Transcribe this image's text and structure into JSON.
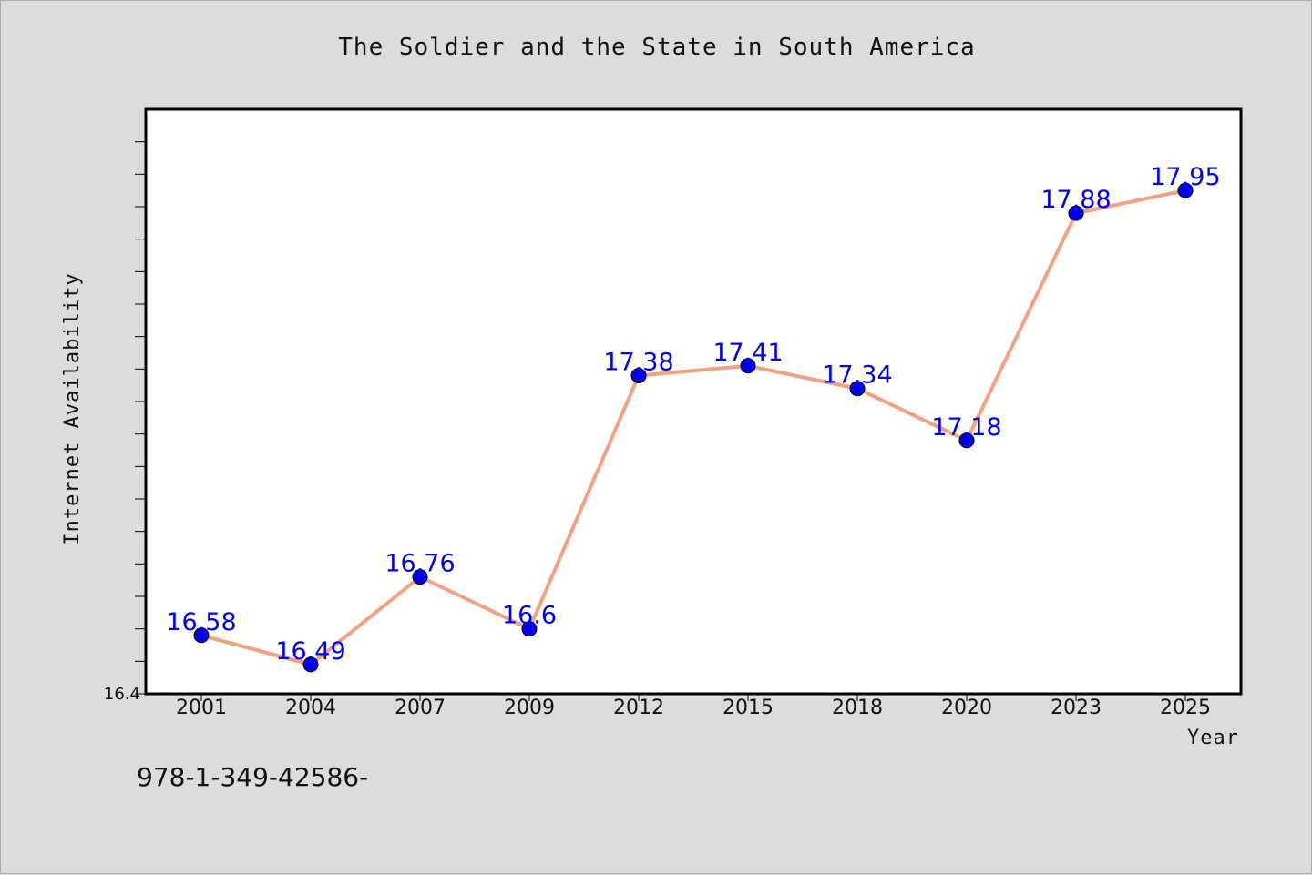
{
  "chart_data": {
    "type": "line",
    "title": "The Soldier and the State in South America",
    "xlabel": "Year",
    "ylabel": "Internet Availability",
    "categories": [
      "2001",
      "2004",
      "2007",
      "2009",
      "2012",
      "2015",
      "2018",
      "2020",
      "2023",
      "2025"
    ],
    "series": [
      {
        "values": [
          16.58,
          16.49,
          16.76,
          16.6,
          17.38,
          17.41,
          17.34,
          17.18,
          17.88,
          17.95
        ],
        "labels": [
          "16.58",
          "16.49",
          "16.76",
          "16.6",
          "17.38",
          "17.41",
          "17.34",
          "17.18",
          "17.88",
          "17.95"
        ],
        "line_color": "#f4a081",
        "marker_color": "#0000ee",
        "label_color": "#0000ff"
      }
    ],
    "ylim": [
      16.4,
      18.2
    ],
    "y_tick_labels": [
      "16.4"
    ],
    "grid": false,
    "legend": "none"
  },
  "footer": {
    "code": "978-1-349-42586-"
  }
}
